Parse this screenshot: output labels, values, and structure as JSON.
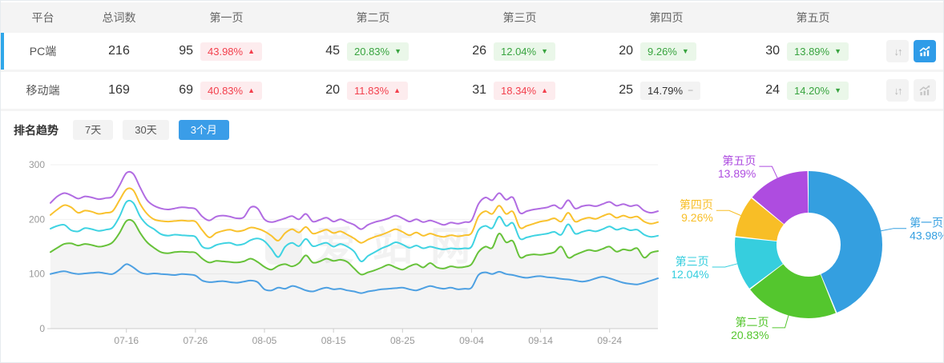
{
  "table": {
    "columns": [
      "平台",
      "总词数",
      "第一页",
      "第二页",
      "第三页",
      "第四页",
      "第五页"
    ],
    "rows": [
      {
        "platform": "PC端",
        "total": "216",
        "selected": true,
        "chart_button_active": true,
        "pages": [
          {
            "count": "95",
            "pct": "43.98%",
            "trend": "up"
          },
          {
            "count": "45",
            "pct": "20.83%",
            "trend": "down"
          },
          {
            "count": "26",
            "pct": "12.04%",
            "trend": "down"
          },
          {
            "count": "20",
            "pct": "9.26%",
            "trend": "down"
          },
          {
            "count": "30",
            "pct": "13.89%",
            "trend": "down"
          }
        ]
      },
      {
        "platform": "移动端",
        "total": "169",
        "selected": false,
        "chart_button_active": false,
        "pages": [
          {
            "count": "69",
            "pct": "40.83%",
            "trend": "up"
          },
          {
            "count": "20",
            "pct": "11.83%",
            "trend": "up"
          },
          {
            "count": "31",
            "pct": "18.34%",
            "trend": "up"
          },
          {
            "count": "25",
            "pct": "14.79%",
            "trend": "flat"
          },
          {
            "count": "24",
            "pct": "14.20%",
            "trend": "down"
          }
        ]
      }
    ]
  },
  "trend_section": {
    "title": "排名趋势",
    "tabs": [
      {
        "label": "7天",
        "active": false
      },
      {
        "label": "30天",
        "active": false
      },
      {
        "label": "3个月",
        "active": true
      }
    ]
  },
  "watermark": "爱站网",
  "colors": {
    "accent_blue": "#2f9ce8",
    "row_indicator": "#2fa7e9",
    "badge_up_text": "#f3404d",
    "badge_up_bg": "#fdecee",
    "badge_down_text": "#38a43f",
    "badge_down_bg": "#eaf7e9",
    "badge_flat_bg": "#f3f3f3",
    "table_header_bg": "#f4f4f4",
    "active_tab_bg": "#3a9de8"
  },
  "chart_data": [
    {
      "type": "line",
      "title": "排名趋势 (3个月)",
      "ylim": [
        0,
        300
      ],
      "y_ticks": [
        0,
        100,
        200,
        300
      ],
      "grid": true,
      "stacked_cumulative": true,
      "area_fill_series": 1,
      "x_tick_labels": [
        "07-16",
        "07-26",
        "08-05",
        "08-15",
        "08-25",
        "09-04",
        "09-14",
        "09-24"
      ],
      "x_tick_indices": [
        11,
        21,
        31,
        41,
        51,
        61,
        71,
        81
      ],
      "series": [
        {
          "name": "第一页",
          "color": "#4da0e2",
          "values": [
            100,
            103,
            105,
            102,
            100,
            101,
            102,
            103,
            101,
            100,
            108,
            118,
            112,
            103,
            100,
            101,
            100,
            99,
            98,
            100,
            99,
            97,
            88,
            85,
            86,
            87,
            85,
            84,
            86,
            88,
            85,
            72,
            70,
            75,
            73,
            78,
            75,
            70,
            68,
            72,
            75,
            72,
            73,
            70,
            68,
            65,
            68,
            70,
            72,
            73,
            74,
            75,
            72,
            70,
            74,
            78,
            75,
            73,
            75,
            72,
            73,
            75,
            98,
            103,
            100,
            104,
            100,
            98,
            95,
            93,
            95,
            96,
            94,
            93,
            91,
            90,
            88,
            86,
            88,
            92,
            95,
            92,
            88,
            84,
            82,
            81,
            84,
            88,
            92
          ]
        },
        {
          "name": "第二页",
          "color": "#67c23a",
          "values": [
            140,
            148,
            155,
            156,
            152,
            155,
            153,
            150,
            152,
            158,
            175,
            197,
            196,
            175,
            158,
            148,
            140,
            138,
            140,
            141,
            140,
            139,
            128,
            121,
            124,
            123,
            122,
            121,
            123,
            128,
            122,
            113,
            108,
            115,
            118,
            114,
            120,
            134,
            121,
            123,
            128,
            124,
            126,
            122,
            110,
            99,
            103,
            107,
            112,
            117,
            112,
            108,
            114,
            118,
            112,
            120,
            112,
            110,
            114,
            112,
            113,
            118,
            140,
            150,
            148,
            174,
            158,
            160,
            131,
            134,
            136,
            135,
            137,
            140,
            150,
            130,
            135,
            140,
            144,
            142,
            146,
            150,
            141,
            145,
            143,
            147,
            130,
            139,
            142
          ]
        },
        {
          "name": "第三页",
          "color": "#3fd3e2",
          "values": [
            183,
            188,
            190,
            180,
            178,
            184,
            182,
            179,
            181,
            185,
            205,
            232,
            230,
            205,
            190,
            182,
            173,
            170,
            172,
            171,
            170,
            168,
            150,
            147,
            153,
            156,
            157,
            153,
            155,
            162,
            165,
            160,
            146,
            131,
            150,
            157,
            151,
            164,
            151,
            154,
            157,
            150,
            155,
            150,
            141,
            123,
            133,
            140,
            147,
            152,
            158,
            154,
            148,
            152,
            147,
            150,
            147,
            145,
            147,
            146,
            147,
            150,
            180,
            188,
            184,
            205,
            188,
            193,
            165,
            167,
            170,
            172,
            174,
            177,
            172,
            191,
            174,
            177,
            180,
            178,
            182,
            187,
            181,
            184,
            180,
            181,
            172,
            168,
            170
          ]
        },
        {
          "name": "第四页",
          "color": "#f9c22e",
          "values": [
            208,
            218,
            226,
            222,
            212,
            216,
            214,
            210,
            212,
            215,
            235,
            255,
            253,
            228,
            210,
            200,
            197,
            196,
            197,
            198,
            197,
            196,
            180,
            167,
            175,
            179,
            181,
            178,
            180,
            185,
            183,
            178,
            170,
            161,
            175,
            182,
            176,
            186,
            174,
            177,
            181,
            175,
            178,
            172,
            165,
            157,
            163,
            168,
            172,
            177,
            182,
            177,
            171,
            176,
            170,
            174,
            170,
            168,
            171,
            169,
            171,
            175,
            205,
            215,
            210,
            225,
            210,
            214,
            185,
            188,
            192,
            196,
            198,
            202,
            196,
            212,
            196,
            200,
            203,
            201,
            206,
            210,
            203,
            207,
            203,
            205,
            196,
            192,
            195
          ]
        },
        {
          "name": "第五页",
          "color": "#b16ce2",
          "values": [
            230,
            242,
            248,
            244,
            238,
            242,
            240,
            237,
            239,
            242,
            262,
            285,
            283,
            258,
            235,
            225,
            220,
            218,
            220,
            222,
            221,
            219,
            205,
            198,
            205,
            207,
            205,
            202,
            204,
            222,
            220,
            200,
            195,
            198,
            202,
            206,
            200,
            210,
            196,
            199,
            203,
            196,
            200,
            195,
            190,
            182,
            190,
            195,
            198,
            202,
            207,
            202,
            196,
            200,
            195,
            198,
            194,
            190,
            194,
            192,
            195,
            198,
            228,
            240,
            235,
            248,
            236,
            240,
            212,
            215,
            218,
            220,
            222,
            226,
            220,
            235,
            220,
            224,
            226,
            224,
            228,
            232,
            225,
            228,
            224,
            226,
            216,
            212,
            215
          ]
        }
      ]
    },
    {
      "type": "pie",
      "subtype": "donut",
      "legend_position": "none",
      "labels": [
        "第一页",
        "第二页",
        "第三页",
        "第四页",
        "第五页"
      ],
      "values": [
        43.98,
        20.83,
        12.04,
        9.26,
        13.89
      ],
      "display_values": [
        "43.98%",
        "20.83%",
        "12.04%",
        "9.26%",
        "13.89%"
      ],
      "colors": [
        "#349fe0",
        "#54c62e",
        "#36cede",
        "#f8be26",
        "#ae4ce0"
      ]
    }
  ]
}
